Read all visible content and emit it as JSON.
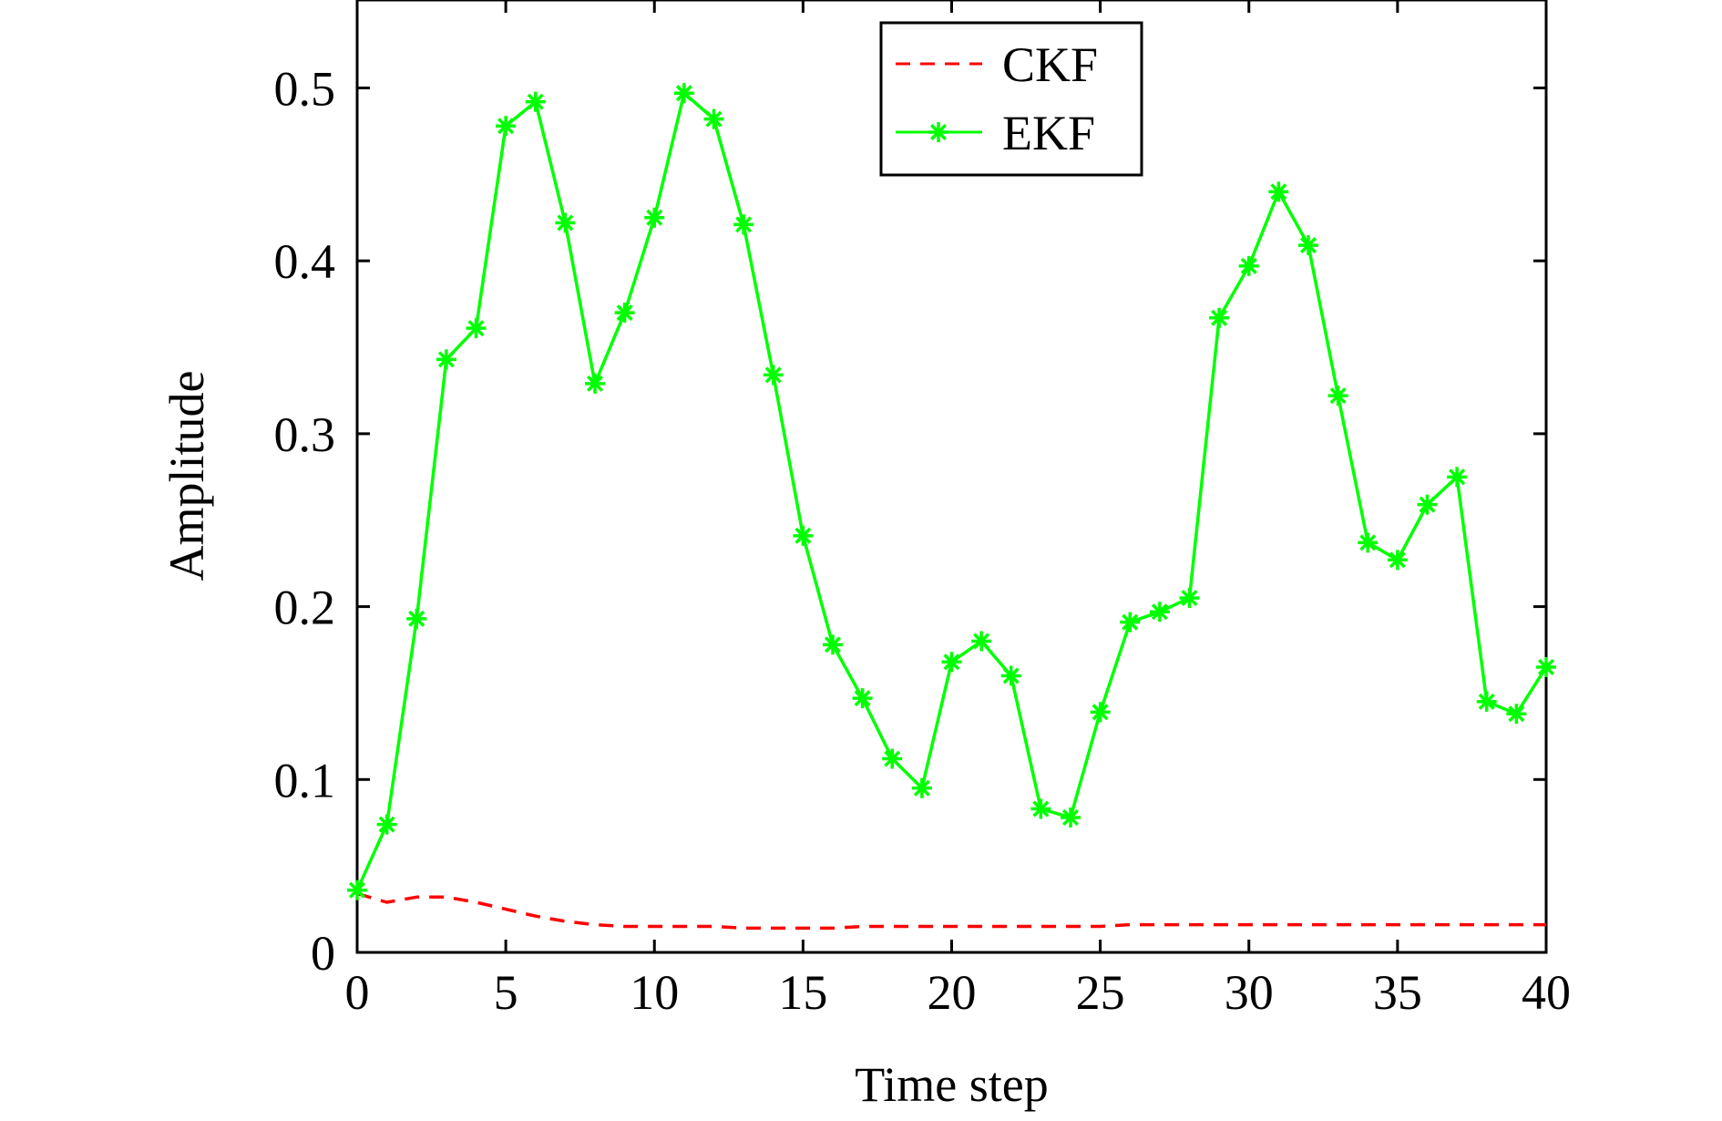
{
  "chart_data": {
    "type": "line",
    "title": "",
    "xlabel": "Time step",
    "ylabel": "Amplitude",
    "xlim": [
      0,
      40
    ],
    "ylim": [
      0,
      0.55
    ],
    "xticks": [
      0,
      5,
      10,
      15,
      20,
      25,
      30,
      35,
      40
    ],
    "xtick_labels": [
      "0",
      "5",
      "10",
      "15",
      "20",
      "25",
      "30",
      "35",
      "40"
    ],
    "yticks": [
      0,
      0.1,
      0.2,
      0.3,
      0.4,
      0.5
    ],
    "ytick_labels": [
      "0",
      "0.1",
      "0.2",
      "0.3",
      "0.4",
      "0.5"
    ],
    "grid": false,
    "legend_position": "top-center",
    "x": [
      0,
      1,
      2,
      3,
      4,
      5,
      6,
      7,
      8,
      9,
      10,
      11,
      12,
      13,
      14,
      15,
      16,
      17,
      18,
      19,
      20,
      21,
      22,
      23,
      24,
      25,
      26,
      27,
      28,
      29,
      30,
      31,
      32,
      33,
      34,
      35,
      36,
      37,
      38,
      39,
      40
    ],
    "series": [
      {
        "name": "CKF",
        "color": "#ff0000",
        "line_style": "dashed",
        "marker": "none",
        "values": [
          0.034,
          0.029,
          0.032,
          0.032,
          0.029,
          0.025,
          0.021,
          0.018,
          0.016,
          0.015,
          0.015,
          0.015,
          0.015,
          0.014,
          0.014,
          0.014,
          0.014,
          0.015,
          0.015,
          0.015,
          0.015,
          0.015,
          0.015,
          0.015,
          0.015,
          0.015,
          0.016,
          0.016,
          0.016,
          0.016,
          0.016,
          0.016,
          0.016,
          0.016,
          0.016,
          0.016,
          0.016,
          0.016,
          0.016,
          0.016,
          0.016
        ]
      },
      {
        "name": "EKF",
        "color": "#00ff00",
        "line_style": "solid",
        "marker": "asterisk",
        "values": [
          0.036,
          0.074,
          0.193,
          0.343,
          0.361,
          0.478,
          0.492,
          0.422,
          0.329,
          0.37,
          0.425,
          0.497,
          0.482,
          0.421,
          0.334,
          0.241,
          0.178,
          0.147,
          0.112,
          0.095,
          0.168,
          0.18,
          0.16,
          0.083,
          0.078,
          0.139,
          0.191,
          0.197,
          0.205,
          0.367,
          0.397,
          0.44,
          0.409,
          0.322,
          0.237,
          0.227,
          0.259,
          0.275,
          0.145,
          0.138,
          0.165
        ]
      }
    ]
  }
}
